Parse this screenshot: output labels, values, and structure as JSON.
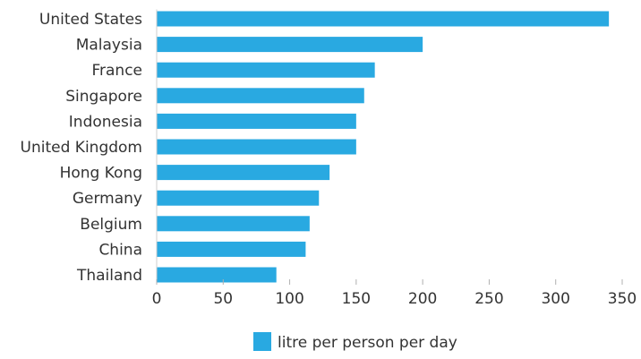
{
  "chart_data": {
    "type": "bar",
    "orientation": "horizontal",
    "categories": [
      "United States",
      "Malaysia",
      "France",
      "Singapore",
      "Indonesia",
      "United Kingdom",
      "Hong Kong",
      "Germany",
      "Belgium",
      "China",
      "Thailand"
    ],
    "series": [
      {
        "name": "litre per person per day",
        "color": "#29a9e1",
        "values": [
          340,
          200,
          164,
          156,
          150,
          150,
          130,
          122,
          115,
          112,
          90
        ]
      }
    ],
    "xlim": [
      0,
      350
    ],
    "xticks": [
      0,
      50,
      100,
      150,
      200,
      250,
      300,
      350
    ],
    "grid": false,
    "legend_position": "bottom-center"
  }
}
